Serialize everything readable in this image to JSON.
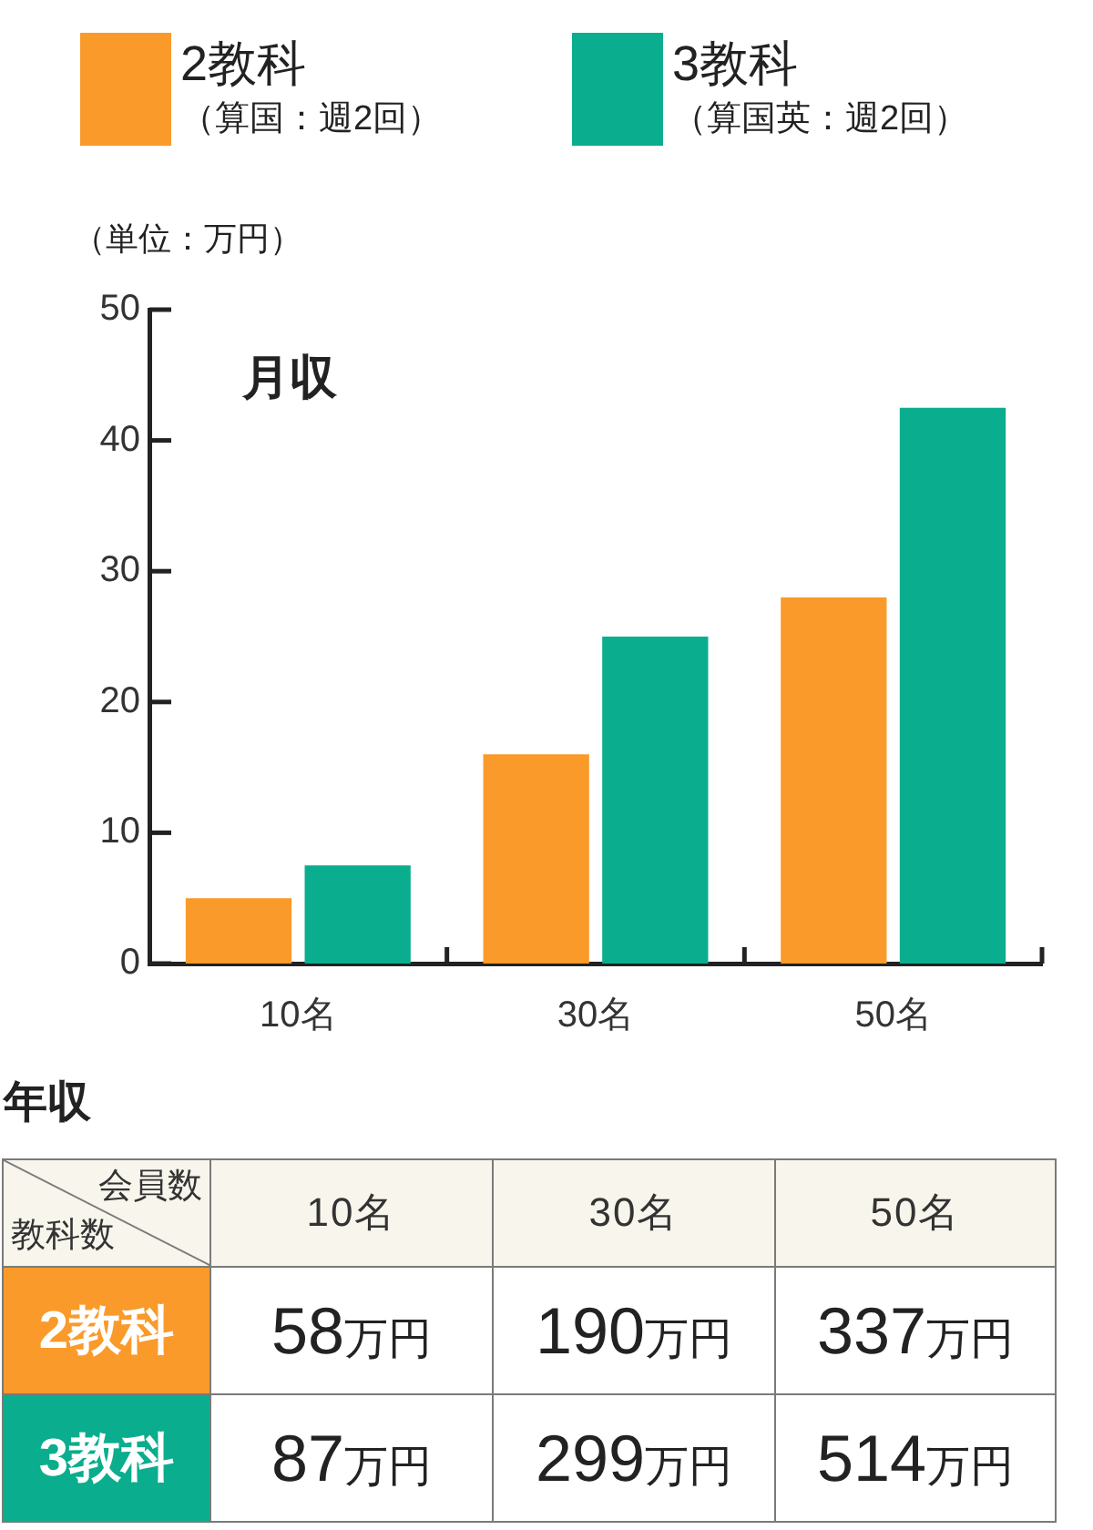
{
  "chart_data": [
    {
      "type": "bar",
      "title": "月収",
      "ylabel": "（単位：万円）",
      "categories": [
        "10名",
        "30名",
        "50名"
      ],
      "series": [
        {
          "name": "2教科（算国：週2回）",
          "color": "#fa9a2a",
          "values": [
            5,
            16,
            28
          ]
        },
        {
          "name": "3教科（算国英：週2回）",
          "color": "#0aad8d",
          "values": [
            7.5,
            25,
            42.5
          ]
        }
      ],
      "ylim": [
        0,
        50
      ],
      "yticks": [
        0,
        10,
        20,
        30,
        40,
        50
      ],
      "legend": "top"
    },
    {
      "type": "other",
      "title": "年収",
      "xlabel": "会員数",
      "ylabel": "教科数",
      "categories": [
        "10名",
        "30名",
        "50名"
      ],
      "series": [
        {
          "name": "2教科",
          "values": [
            58,
            190,
            337
          ],
          "value_labels": [
            "58万円",
            "190万円",
            "337万円"
          ]
        },
        {
          "name": "3教科",
          "values": [
            87,
            299,
            514
          ],
          "value_labels": [
            "87万円",
            "299万円",
            "514万円"
          ]
        }
      ]
    }
  ]
}
